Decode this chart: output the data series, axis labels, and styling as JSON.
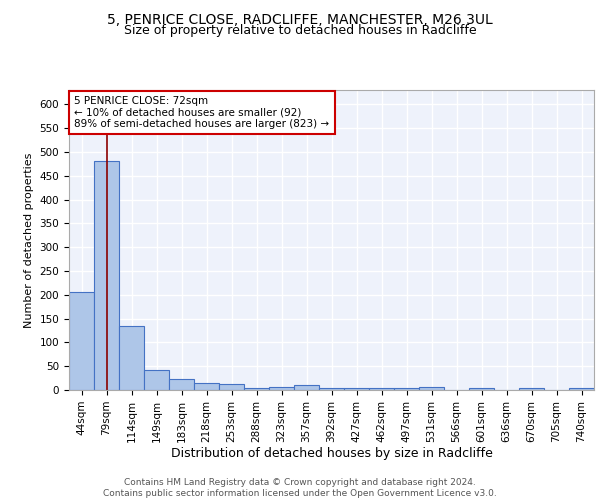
{
  "title1": "5, PENRICE CLOSE, RADCLIFFE, MANCHESTER, M26 3UL",
  "title2": "Size of property relative to detached houses in Radcliffe",
  "xlabel": "Distribution of detached houses by size in Radcliffe",
  "ylabel": "Number of detached properties",
  "categories": [
    "44sqm",
    "79sqm",
    "114sqm",
    "149sqm",
    "183sqm",
    "218sqm",
    "253sqm",
    "288sqm",
    "323sqm",
    "357sqm",
    "392sqm",
    "427sqm",
    "462sqm",
    "497sqm",
    "531sqm",
    "566sqm",
    "601sqm",
    "636sqm",
    "670sqm",
    "705sqm",
    "740sqm"
  ],
  "values": [
    205,
    480,
    135,
    43,
    24,
    15,
    12,
    5,
    6,
    11,
    5,
    4,
    5,
    4,
    7,
    1,
    5,
    1,
    5,
    1,
    5
  ],
  "bar_color": "#aec6e8",
  "bar_edge_color": "#4472c4",
  "vline_x": 1,
  "vline_color": "#8b0000",
  "annotation_line1": "5 PENRICE CLOSE: 72sqm",
  "annotation_line2": "← 10% of detached houses are smaller (92)",
  "annotation_line3": "89% of semi-detached houses are larger (823) →",
  "annotation_box_color": "#ffffff",
  "annotation_box_edge_color": "#cc0000",
  "ylim": [
    0,
    630
  ],
  "yticks": [
    0,
    50,
    100,
    150,
    200,
    250,
    300,
    350,
    400,
    450,
    500,
    550,
    600
  ],
  "background_color": "#eef2fb",
  "grid_color": "#ffffff",
  "footer1": "Contains HM Land Registry data © Crown copyright and database right 2024.",
  "footer2": "Contains public sector information licensed under the Open Government Licence v3.0.",
  "title1_fontsize": 10,
  "title2_fontsize": 9,
  "xlabel_fontsize": 9,
  "ylabel_fontsize": 8,
  "tick_fontsize": 7.5,
  "annotation_fontsize": 7.5,
  "footer_fontsize": 6.5
}
